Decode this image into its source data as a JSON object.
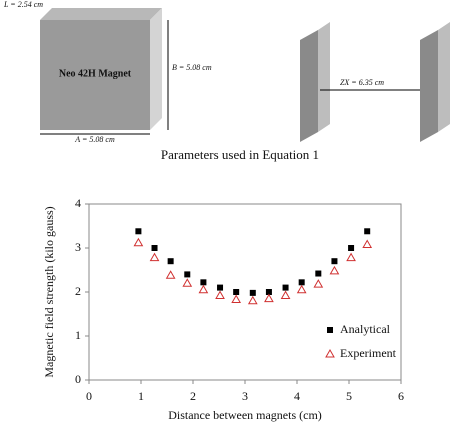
{
  "diagram": {
    "thickness_label": "L = 2.54 cm",
    "block_label": "Neo 42H Magnet",
    "height_label": "B = 5.08 cm",
    "width_label": "A = 5.08 cm",
    "gap_label": "ZX = 6.35 cm",
    "caption": "Parameters used in Equation 1"
  },
  "chart_data": {
    "type": "scatter",
    "xlabel": "Distance between magnets (cm)",
    "ylabel": "Magnetic field strength (kilo gauss)",
    "x": [
      0.95,
      1.26,
      1.57,
      1.89,
      2.2,
      2.52,
      2.83,
      3.15,
      3.46,
      3.78,
      4.09,
      4.41,
      4.72,
      5.04,
      5.35
    ],
    "series": [
      {
        "name": "Analytical",
        "color": "#000000",
        "marker": "square",
        "values": [
          3.38,
          3.0,
          2.7,
          2.4,
          2.22,
          2.1,
          2.0,
          1.98,
          2.0,
          2.1,
          2.22,
          2.42,
          2.7,
          3.0,
          3.38
        ]
      },
      {
        "name": "Experiment",
        "color": "#d03030",
        "marker": "triangle",
        "values": [
          3.12,
          2.78,
          2.38,
          2.2,
          2.05,
          1.92,
          1.83,
          1.8,
          1.85,
          1.92,
          2.05,
          2.18,
          2.48,
          2.78,
          3.08
        ]
      }
    ],
    "xlim": [
      0,
      6
    ],
    "xticks": [
      0,
      1,
      2,
      3,
      4,
      5,
      6
    ],
    "ylim": [
      0,
      4
    ],
    "yticks": [
      0,
      1,
      2,
      3,
      4
    ],
    "legend": "lower right"
  }
}
